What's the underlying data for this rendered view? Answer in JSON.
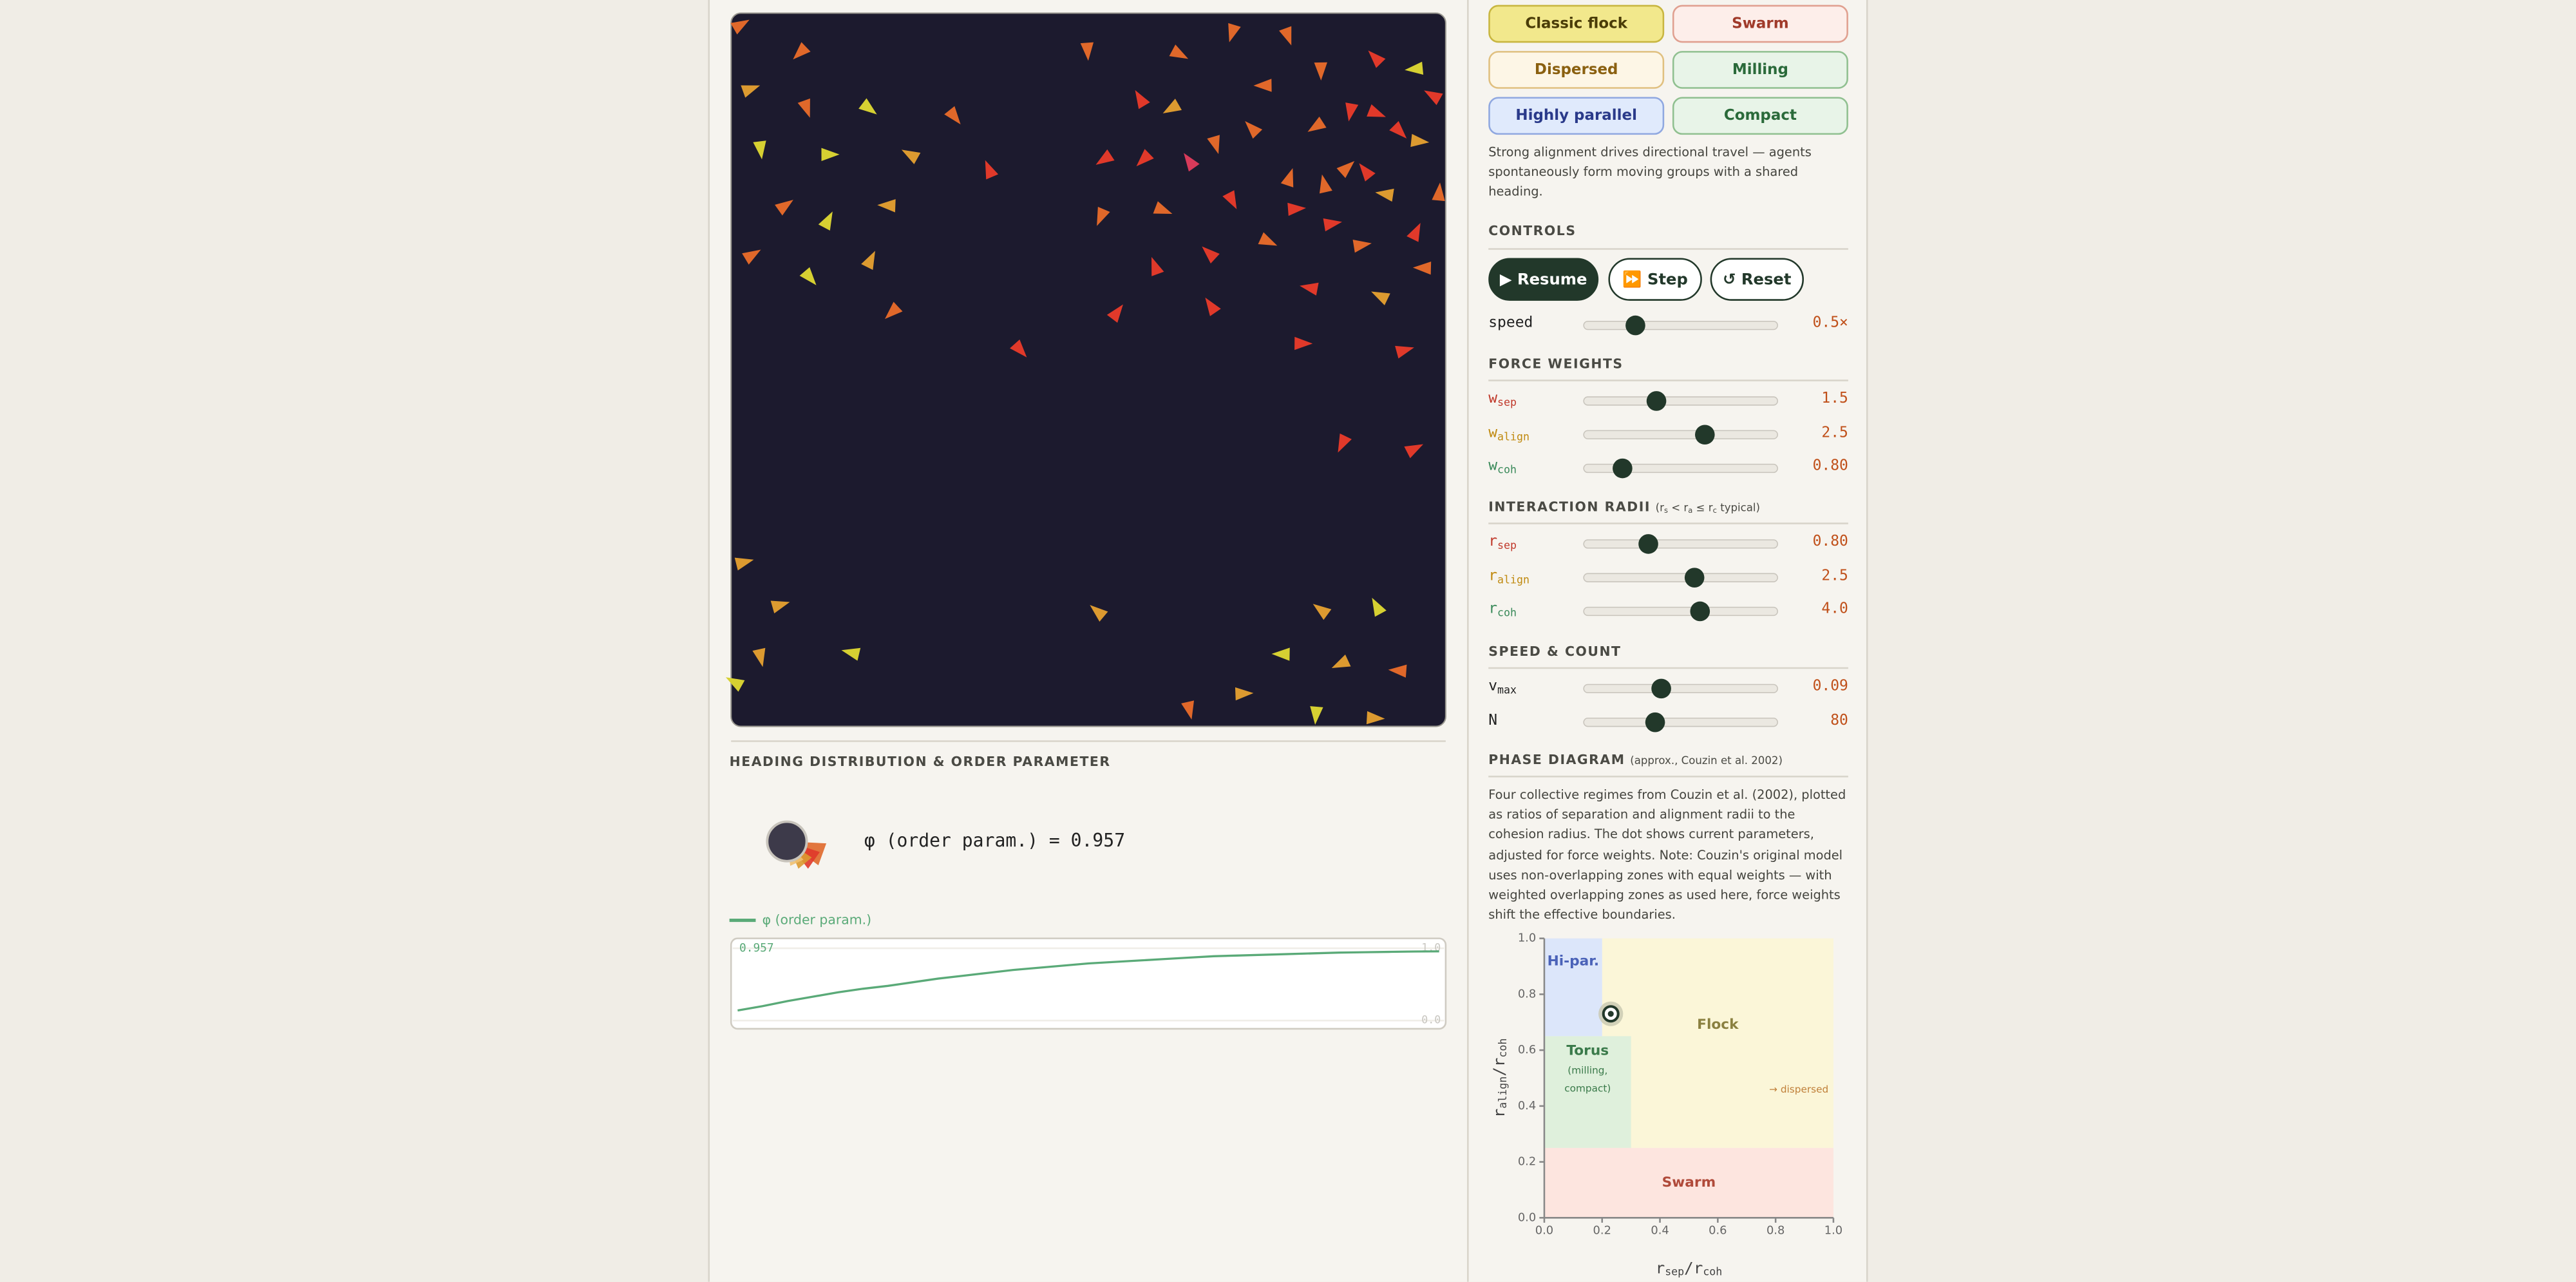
{
  "presets": {
    "buttons": [
      {
        "label": "Classic flock",
        "active": true
      },
      {
        "label": "Swarm",
        "active": false
      },
      {
        "label": "Dispersed",
        "active": false
      },
      {
        "label": "Milling",
        "active": false
      },
      {
        "label": "Highly parallel",
        "active": false
      },
      {
        "label": "Compact",
        "active": false
      }
    ],
    "description": "Strong alignment drives directional travel — agents spontaneously form moving groups with a shared heading."
  },
  "heading": {
    "title": "HEADING DISTRIBUTION & ORDER PARAMETER",
    "readout": "φ (order param.) = 0.957"
  },
  "order_chart": {
    "type": "line",
    "series": [
      {
        "name": "φ (order param.)",
        "color": "#5aaa78",
        "values": [
          0.14,
          0.2,
          0.27,
          0.33,
          0.39,
          0.44,
          0.48,
          0.53,
          0.58,
          0.62,
          0.66,
          0.7,
          0.73,
          0.76,
          0.79,
          0.81,
          0.83,
          0.85,
          0.87,
          0.89,
          0.9,
          0.91,
          0.92,
          0.93,
          0.94,
          0.945,
          0.95,
          0.955,
          0.957
        ]
      }
    ],
    "ylim": [
      0,
      1
    ],
    "yticks": [
      {
        "value": 0,
        "label": "0.0"
      },
      {
        "value": 1,
        "label": "1.0"
      }
    ],
    "current_label": "0.957"
  },
  "controls": {
    "title": "CONTROLS",
    "buttons": [
      "▶ Resume",
      "⏩ Step",
      "↺ Reset"
    ],
    "speed": {
      "symbol": "speed",
      "value": 0.5,
      "label": "0.5×",
      "range": [
        0.1,
        1.6
      ]
    }
  },
  "sections": [
    {
      "title": "FORCE WEIGHTS",
      "sliders": [
        {
          "symbol": "w",
          "sub": "sep",
          "value": 1.5,
          "range": [
            0,
            4
          ]
        },
        {
          "symbol": "w",
          "sub": "align",
          "value": 2.5,
          "range": [
            0,
            4
          ]
        },
        {
          "symbol": "w",
          "sub": "coh",
          "value": 0.8,
          "label": "0.80",
          "range": [
            0,
            4
          ]
        }
      ]
    },
    {
      "title": "INTERACTION RADII",
      "note": [
        "(r",
        "s",
        " < r",
        "a",
        " ≤ r",
        "c",
        " typical)"
      ],
      "sliders": [
        {
          "symbol": "r",
          "sub": "sep",
          "value": 0.8,
          "label": "0.80",
          "range": [
            0.2,
            2
          ]
        },
        {
          "symbol": "r",
          "sub": "align",
          "value": 2.5,
          "range": [
            0.5,
            4
          ]
        },
        {
          "symbol": "r",
          "sub": "coh",
          "value": 4.0,
          "label": "4.0",
          "range": [
            1,
            6
          ]
        }
      ]
    },
    {
      "title": "SPEED & COUNT",
      "sliders": [
        {
          "symbol": "v",
          "sub": "max",
          "value": 0.09,
          "range": [
            0.01,
            0.21
          ]
        },
        {
          "symbol": "N",
          "value": 80,
          "range": [
            10,
            200
          ]
        }
      ]
    }
  ],
  "phase": {
    "title": "PHASE DIAGRAM",
    "note": "(approx., Couzin et al. 2002)",
    "description": "Four collective regimes from Couzin et al. (2002), plotted as ratios of separation and alignment radii to the cohesion radius. The dot shows current parameters, adjusted for force weights. Note: Couzin's original model uses non-overlapping zones with equal weights — with weighted overlapping zones as used here, force weights shift the effective boundaries.",
    "chart": {
      "type": "region",
      "xlabel": [
        "r",
        "sep",
        "/r",
        "coh"
      ],
      "ylabel": [
        "r",
        "align",
        "/r",
        "coh"
      ],
      "xlim": [
        0,
        1
      ],
      "ylim": [
        0,
        1
      ],
      "xticks": [
        {
          "value": 0,
          "label": "0.0"
        },
        {
          "value": 0.2,
          "label": "0.2"
        },
        {
          "value": 0.4,
          "label": "0.4"
        },
        {
          "value": 0.6,
          "label": "0.6"
        },
        {
          "value": 0.8,
          "label": "0.8"
        },
        {
          "value": 1,
          "label": "1.0"
        }
      ],
      "yticks": [
        {
          "value": 0,
          "label": "0.0"
        },
        {
          "value": 0.2,
          "label": "0.2"
        },
        {
          "value": 0.4,
          "label": "0.4"
        },
        {
          "value": 0.6,
          "label": "0.6"
        },
        {
          "value": 0.8,
          "label": "0.8"
        },
        {
          "value": 1,
          "label": "1.0"
        }
      ],
      "regions": [
        {
          "name": "Flock",
          "x": [
            0.2,
            1
          ],
          "y": [
            0.25,
            1
          ],
          "color": "#fbf6d8",
          "text_color": "#8a8040"
        },
        {
          "name": "Hi-par.",
          "x": [
            0,
            0.2
          ],
          "y": [
            0.65,
            1
          ],
          "color": "#dce6fa",
          "text_color": "#4a62b8"
        },
        {
          "name": "Torus",
          "x": [
            0,
            0.3
          ],
          "y": [
            0.25,
            0.65
          ],
          "color": "#dff0dc",
          "text_color": "#3a7a4a",
          "note": [
            "(milling,",
            "compact)"
          ]
        },
        {
          "name": "Swarm",
          "x": [
            0,
            1
          ],
          "y": [
            0,
            0.25
          ],
          "color": "#fde5df",
          "text_color": "#b04a3a"
        }
      ],
      "annotation": "→ dispersed",
      "current": [
        0.23,
        0.73
      ]
    }
  }
}
